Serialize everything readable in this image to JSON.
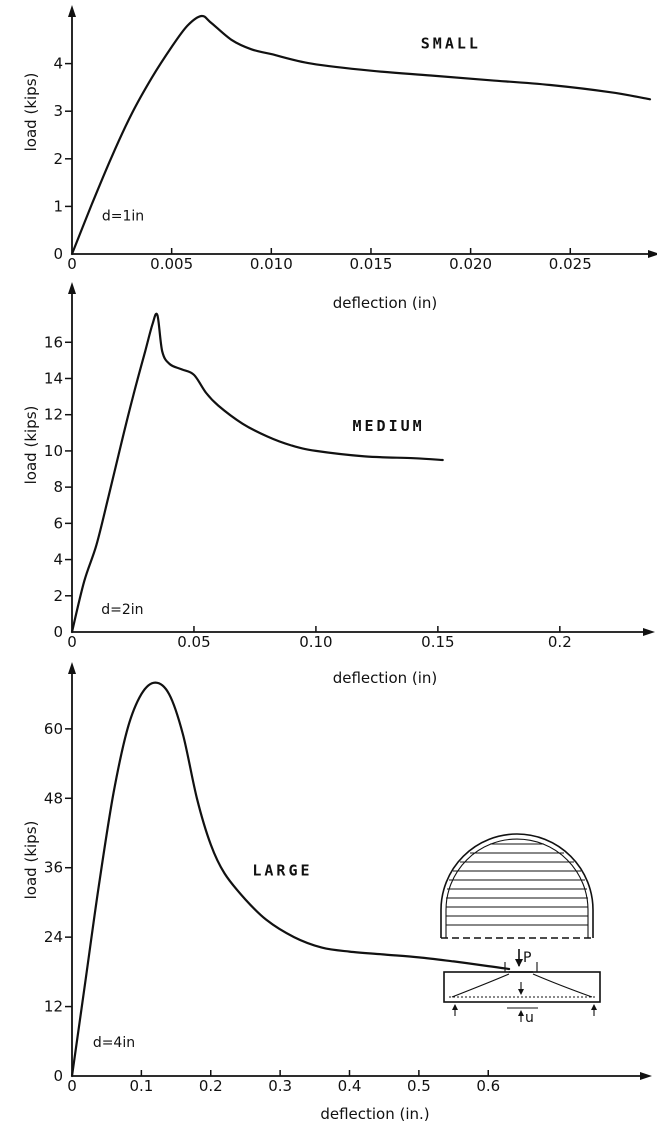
{
  "chart_data": [
    {
      "type": "line",
      "xlabel": "deflection (in)",
      "ylabel": "load (kips)",
      "xlim": [
        0,
        0.029
      ],
      "ylim": [
        0,
        5.0
      ],
      "x_ticks": [
        0,
        0.005,
        0.01,
        0.015,
        0.02,
        0.025
      ],
      "x_tick_labels": [
        "0",
        "0.005",
        "0.010",
        "0.015",
        "0.020",
        "0.025"
      ],
      "y_ticks": [
        0,
        1,
        2,
        3,
        4
      ],
      "y_tick_labels": [
        "0",
        "1",
        "2",
        "3",
        "4"
      ],
      "annotation": "d=1in",
      "series": [
        {
          "name": "SMALL",
          "x": [
            0,
            0.001,
            0.002,
            0.003,
            0.004,
            0.005,
            0.0058,
            0.0065,
            0.007,
            0.008,
            0.009,
            0.01,
            0.012,
            0.015,
            0.018,
            0.021,
            0.024,
            0.027,
            0.029
          ],
          "y": [
            0,
            1.05,
            2.05,
            2.95,
            3.7,
            4.35,
            4.8,
            5.0,
            4.85,
            4.5,
            4.3,
            4.2,
            4.0,
            3.85,
            3.75,
            3.65,
            3.55,
            3.4,
            3.25
          ]
        }
      ]
    },
    {
      "type": "line",
      "xlabel": "deflection (in)",
      "ylabel": "load (kips)",
      "xlim": [
        0,
        0.23
      ],
      "ylim": [
        0,
        18.5
      ],
      "x_ticks": [
        0,
        0.05,
        0.1,
        0.15,
        0.2
      ],
      "x_tick_labels": [
        "0",
        "0.05",
        "0.10",
        "0.15",
        "0.2"
      ],
      "y_ticks": [
        0,
        2,
        4,
        6,
        8,
        10,
        12,
        14,
        16
      ],
      "y_tick_labels": [
        "0",
        "2",
        "4",
        "6",
        "8",
        "10",
        "12",
        "14",
        "16"
      ],
      "annotation": "d=2in",
      "series": [
        {
          "name": "MEDIUM",
          "x": [
            0,
            0.005,
            0.01,
            0.015,
            0.02,
            0.025,
            0.03,
            0.033,
            0.035,
            0.037,
            0.04,
            0.045,
            0.05,
            0.055,
            0.06,
            0.07,
            0.08,
            0.09,
            0.1,
            0.12,
            0.14,
            0.152
          ],
          "y": [
            0,
            2.8,
            4.8,
            7.5,
            10.3,
            13.0,
            15.5,
            17.0,
            17.5,
            15.5,
            14.8,
            14.5,
            14.2,
            13.2,
            12.5,
            11.5,
            10.8,
            10.3,
            10.0,
            9.7,
            9.6,
            9.5
          ]
        }
      ]
    },
    {
      "type": "line",
      "xlabel": "deflection (in.)",
      "ylabel": "load (kips)",
      "xlim": [
        0,
        0.82
      ],
      "ylim": [
        0,
        70
      ],
      "x_ticks": [
        0,
        0.1,
        0.2,
        0.3,
        0.4,
        0.5,
        0.6
      ],
      "x_tick_labels": [
        "0",
        "0.1",
        "0.2",
        "0.3",
        "0.4",
        "0.5",
        "0.6"
      ],
      "y_ticks": [
        0,
        12,
        24,
        36,
        48,
        60
      ],
      "y_tick_labels": [
        "0",
        "12",
        "24",
        "36",
        "48",
        "60"
      ],
      "annotation": "d=4in",
      "inset_labels": {
        "load": "P",
        "deflection": "u"
      },
      "series": [
        {
          "name": "LARGE",
          "x": [
            0,
            0.02,
            0.04,
            0.06,
            0.08,
            0.1,
            0.12,
            0.14,
            0.16,
            0.18,
            0.2,
            0.22,
            0.25,
            0.28,
            0.32,
            0.36,
            0.4,
            0.45,
            0.5,
            0.55,
            0.6,
            0.63
          ],
          "y": [
            0,
            17,
            34,
            49,
            60,
            66,
            68,
            66,
            59,
            48,
            40,
            35,
            30.5,
            27,
            24,
            22.2,
            21.5,
            21.0,
            20.5,
            19.8,
            19.0,
            18.5
          ]
        }
      ]
    }
  ]
}
